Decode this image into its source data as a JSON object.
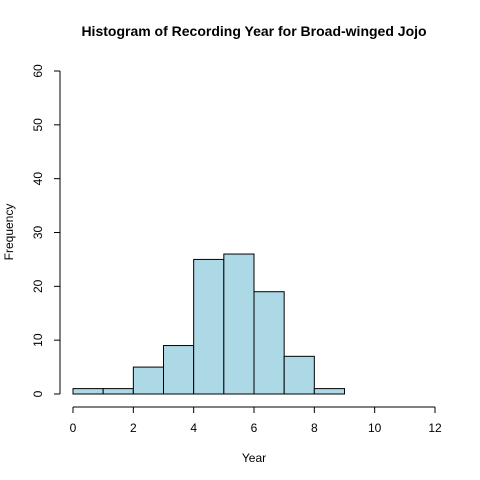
{
  "chart_data": {
    "type": "bar",
    "title": "Histogram of Recording Year for Broad-winged Jojo",
    "xlabel": "Year",
    "ylabel": "Frequency",
    "bin_edges": [
      0,
      1,
      2,
      3,
      4,
      5,
      6,
      7,
      8,
      9,
      10,
      11,
      12
    ],
    "categories": [
      "0-1",
      "1-2",
      "2-3",
      "3-4",
      "4-5",
      "5-6",
      "6-7",
      "7-8",
      "8-9",
      "9-10",
      "10-11",
      "11-12"
    ],
    "values": [
      1,
      1,
      5,
      9,
      25,
      26,
      19,
      7,
      1,
      0,
      0,
      0
    ],
    "xlim": [
      0,
      12
    ],
    "ylim": [
      0,
      60
    ],
    "x_ticks": [
      "0",
      "2",
      "4",
      "6",
      "8",
      "10",
      "12"
    ],
    "y_ticks": [
      "0",
      "10",
      "20",
      "30",
      "40",
      "50",
      "60"
    ],
    "grid": false,
    "bar_color": "#add8e6"
  }
}
